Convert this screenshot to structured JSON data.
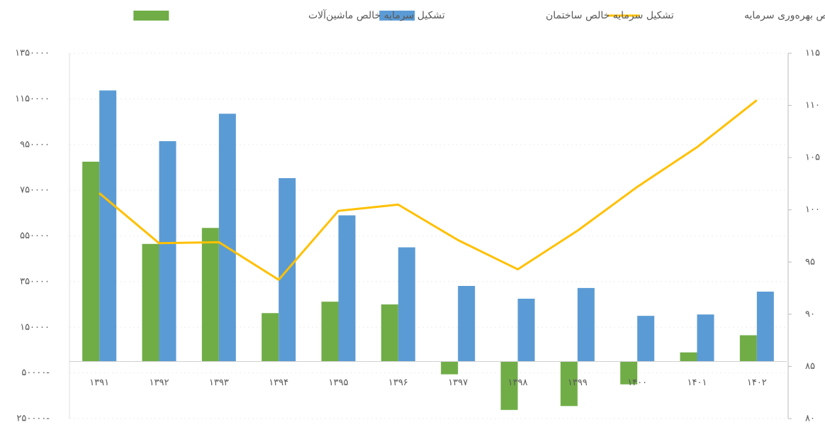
{
  "chart_data": {
    "type": "bar_line",
    "categories": [
      "۱۳۹۱",
      "۱۳۹۲",
      "۱۳۹۳",
      "۱۳۹۴",
      "۱۳۹۵",
      "۱۳۹۶",
      "۱۳۹۷",
      "۱۳۹۸",
      "۱۳۹۹",
      "۱۴۰۰",
      "۱۴۰۱",
      "۱۴۰۲"
    ],
    "series": [
      {
        "name": "تشکیل سرمایه خالص ماشین‌آلات",
        "color": "#70ad47",
        "kind": "bar",
        "values": [
          875000,
          515000,
          585000,
          212000,
          262000,
          250000,
          -56000,
          -212000,
          -195000,
          -100000,
          40000,
          115000
        ]
      },
      {
        "name": "تشکیل سرمایه خالص ساختمان",
        "color": "#5b9bd5",
        "kind": "bar",
        "values": [
          1187000,
          965000,
          1085000,
          803000,
          640000,
          500000,
          331000,
          275000,
          322000,
          200000,
          206000,
          306000
        ]
      },
      {
        "name": "شاخص بهره‌وری سرمایه",
        "color": "#ffc000",
        "kind": "line",
        "axis": "y2",
        "values": [
          101.6,
          96.8,
          96.9,
          93.3,
          99.9,
          100.5,
          97.1,
          94.3,
          98.0,
          102.2,
          106.0,
          110.5
        ]
      }
    ],
    "ylim": [
      -250000,
      1350000
    ],
    "yticks": [
      {
        "value": 1350000,
        "label": "۱۳۵۰۰۰۰"
      },
      {
        "value": 1150000,
        "label": "۱۱۵۰۰۰۰"
      },
      {
        "value": 950000,
        "label": "۹۵۰۰۰۰"
      },
      {
        "value": 750000,
        "label": "۷۵۰۰۰۰"
      },
      {
        "value": 550000,
        "label": "۵۵۰۰۰۰"
      },
      {
        "value": 350000,
        "label": "۳۵۰۰۰۰"
      },
      {
        "value": 150000,
        "label": "۱۵۰۰۰۰"
      },
      {
        "value": -50000,
        "label": "۵۰۰۰۰-"
      },
      {
        "value": -250000,
        "label": "۲۵۰۰۰۰-"
      }
    ],
    "y2lim": [
      80,
      115
    ],
    "y2ticks": [
      {
        "value": 115,
        "label": "۱۱۵"
      },
      {
        "value": 110,
        "label": "۱۱۰"
      },
      {
        "value": 105,
        "label": "۱۰۵"
      },
      {
        "value": 100,
        "label": "۱۰۰"
      },
      {
        "value": 95,
        "label": "۹۵"
      },
      {
        "value": 90,
        "label": "۹۰"
      },
      {
        "value": 85,
        "label": "۸۵"
      },
      {
        "value": 80,
        "label": "۸۰"
      }
    ]
  }
}
